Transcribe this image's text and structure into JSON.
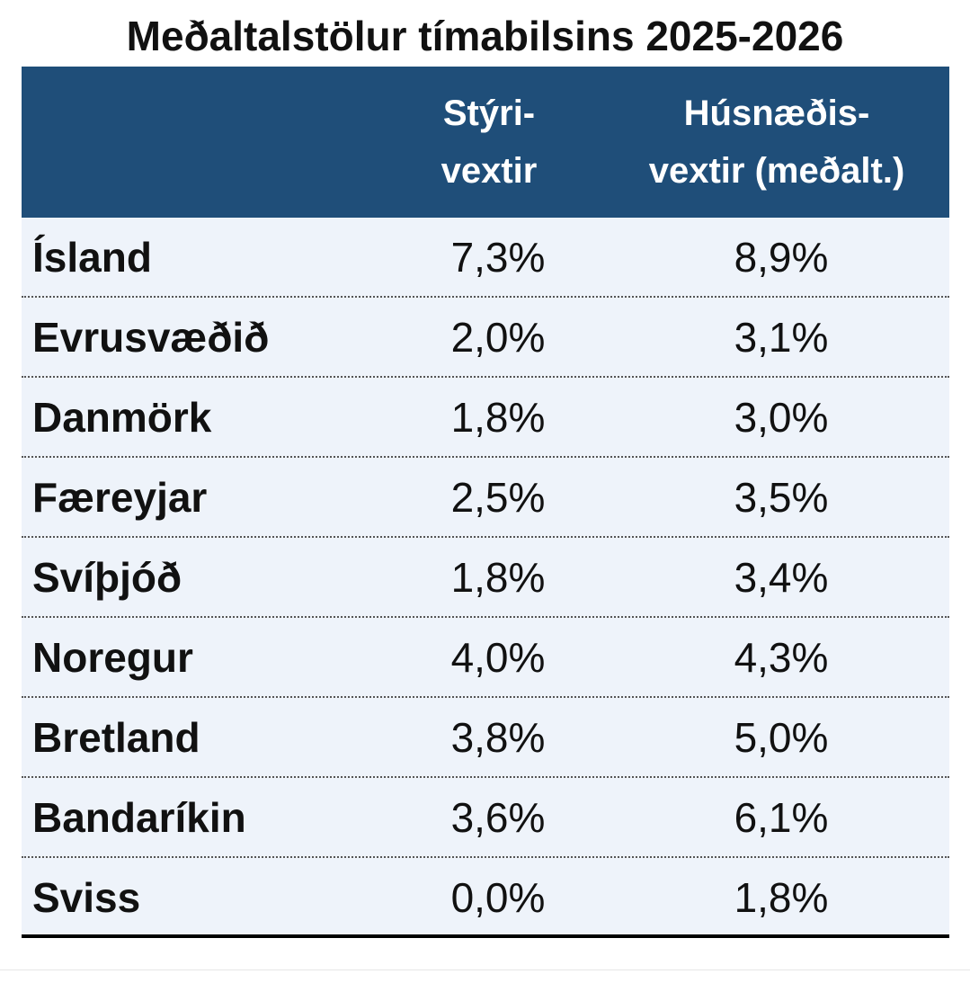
{
  "chart_data": {
    "type": "table",
    "title": "Meðaltalstölur tímabilsins 2025-2026",
    "columns": [
      {
        "line1": "Stýri-",
        "line2": "vextir"
      },
      {
        "line1": "Húsnæðis-",
        "line2": "vextir (meðalt.)"
      }
    ],
    "rows": [
      {
        "country": "Ísland",
        "styrivextir": "7,3%",
        "husnaedisvextir": "8,9%"
      },
      {
        "country": "Evrusvæðið",
        "styrivextir": "2,0%",
        "husnaedisvextir": "3,1%"
      },
      {
        "country": "Danmörk",
        "styrivextir": "1,8%",
        "husnaedisvextir": "3,0%"
      },
      {
        "country": "Færeyjar",
        "styrivextir": "2,5%",
        "husnaedisvextir": "3,5%"
      },
      {
        "country": "Svíþjóð",
        "styrivextir": "1,8%",
        "husnaedisvextir": "3,4%"
      },
      {
        "country": "Noregur",
        "styrivextir": "4,0%",
        "husnaedisvextir": "4,3%"
      },
      {
        "country": "Bretland",
        "styrivextir": "3,8%",
        "husnaedisvextir": "5,0%"
      },
      {
        "country": "Bandaríkin",
        "styrivextir": "3,6%",
        "husnaedisvextir": "6,1%"
      },
      {
        "country": "Sviss",
        "styrivextir": "0,0%",
        "husnaedisvextir": "1,8%"
      }
    ],
    "colors": {
      "header_bg": "#1f4e79",
      "header_text": "#ffffff",
      "body_bg": "#eef3fa"
    }
  }
}
